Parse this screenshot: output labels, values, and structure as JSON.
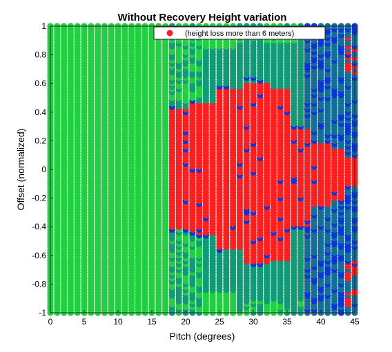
{
  "chart_data": {
    "type": "scatter",
    "title": "Without Recovery Height variation",
    "xlabel": "Pitch (degrees)",
    "ylabel": "Offset (normalized)",
    "xlim": [
      0,
      45
    ],
    "ylim": [
      -1,
      1
    ],
    "xticks": [
      "0",
      "5",
      "10",
      "15",
      "20",
      "25",
      "30",
      "35",
      "40",
      "45"
    ],
    "yticks": [
      "1",
      "0.8",
      "0.6",
      "0.4",
      "0.2",
      "0",
      "-0.2",
      "-0.4",
      "-0.6",
      "-0.8",
      "-1"
    ],
    "grid": false,
    "legend_position": "top-right",
    "series": [
      {
        "name": "(height loss more than 6 meters)",
        "color": "#ff1f1f"
      }
    ],
    "colors": {
      "safe": "#20d040",
      "teal": "#129a76",
      "blue": "#0a35d8",
      "steel": "#136f96",
      "red": "#ff1f1f"
    },
    "grid_points": {
      "x_start": 0,
      "x_step": 1,
      "x_count": 46,
      "y_start": -1,
      "y_step": 0.02,
      "y_count": 101
    }
  }
}
